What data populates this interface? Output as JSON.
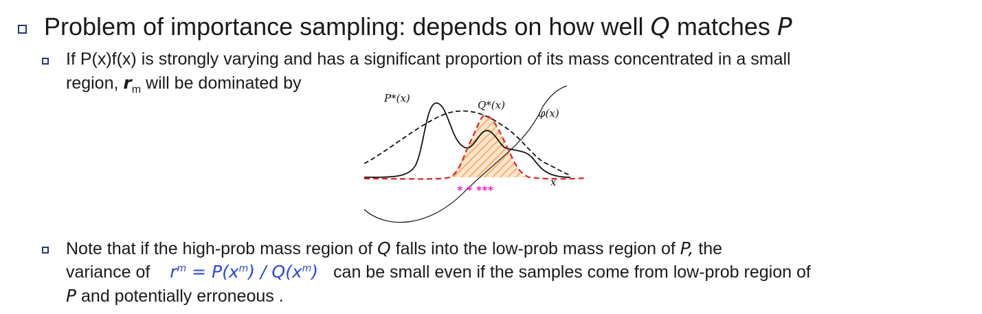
{
  "slide": {
    "headline": {
      "prefix": "Problem of importance sampling: depends on how well ",
      "q": "Q",
      "mid": " matches ",
      "p": "P"
    },
    "bullet1": {
      "line1": "If P(x)f(x) is strongly varying and has a significant proportion of its mass concentrated in a small",
      "line2_prefix": "region, ",
      "r": "r",
      "r_sub": "m",
      "line2_suffix": " will be dominated by"
    },
    "bullet2": {
      "a1": "Note that if the high-prob mass region of ",
      "q": "Q",
      "a2": " falls into the low-prob mass region of ",
      "p": "P,",
      "a3": " the",
      "b1": "variance of ",
      "formula": {
        "r": "r",
        "sup_m": "m",
        "eq": " = ",
        "P": "P",
        "lp": "(",
        "x": "x",
        "rp": ")",
        "slash": " / ",
        "Q": "Q"
      },
      "b2": "can be small even if the samples come from low-prob region of",
      "c_p": "P",
      "c1": " and potentially erroneous ."
    }
  },
  "figure": {
    "labels": {
      "p_star": "P*(x)",
      "q_star": "Q*(x)",
      "phi": "φ(x)",
      "x_axis": "x"
    },
    "sample_marks": "*  *  ***",
    "colors": {
      "target_curve": "#111111",
      "proposal_curve": "#e02020",
      "hatch": "#f5b06a",
      "samples": "#ee22cc"
    }
  }
}
